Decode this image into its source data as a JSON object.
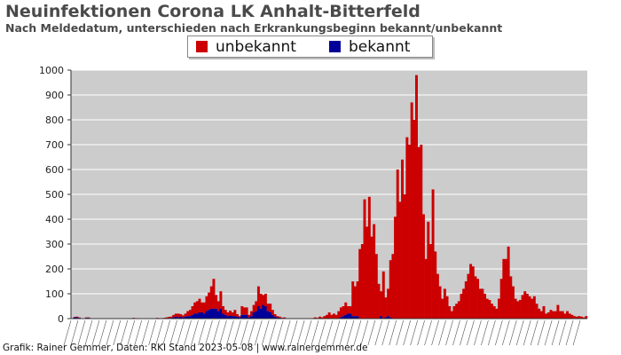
{
  "title": "Neuinfektionen Corona LK Anhalt-Bitterfeld",
  "subtitle": "Nach Meldedatum, unterschieden nach Erkrankungsbeginn bekannt/unbekannt",
  "legend": {
    "placement": "top-center",
    "items": [
      {
        "label": "unbekannt",
        "color": "#cc0000"
      },
      {
        "label": "bekannt",
        "color": "#000099"
      }
    ]
  },
  "footer": "Grafik: Rainer Gemmer, Daten: RKI Stand 2023-05-08 | www.rainergemmer.de",
  "colors": {
    "plot_bg": "#cccccc",
    "grid": "#ffffff",
    "unbekannt": "#cc0000",
    "bekannt": "#000099"
  },
  "chart_data": {
    "type": "bar",
    "stacked": true,
    "ylim": [
      0,
      1000
    ],
    "yticks": [
      0,
      100,
      200,
      300,
      400,
      500,
      600,
      700,
      800,
      900,
      1000
    ],
    "grid": true,
    "xaxis_note": "one bar per reporting week; x tick labels are dense overlapping date labels and not legible",
    "series": [
      {
        "name": "unbekannt",
        "values": [
          0,
          2,
          3,
          2,
          0,
          0,
          2,
          2,
          0,
          0,
          0,
          0,
          0,
          0,
          0,
          0,
          0,
          0,
          0,
          0,
          0,
          0,
          0,
          0,
          0,
          0,
          3,
          2,
          0,
          0,
          0,
          0,
          0,
          0,
          0,
          0,
          3,
          2,
          2,
          3,
          3,
          5,
          5,
          10,
          12,
          15,
          10,
          8,
          12,
          20,
          25,
          35,
          45,
          50,
          55,
          40,
          45,
          60,
          70,
          90,
          120,
          55,
          40,
          70,
          30,
          20,
          15,
          20,
          15,
          25,
          10,
          5,
          35,
          30,
          30,
          10,
          20,
          30,
          40,
          80,
          60,
          40,
          50,
          30,
          35,
          20,
          10,
          5,
          5,
          2,
          3,
          0,
          0,
          0,
          0,
          0,
          0,
          0,
          0,
          0,
          0,
          0,
          2,
          5,
          3,
          8,
          5,
          10,
          15,
          25,
          15,
          20,
          15,
          30,
          40,
          40,
          50,
          30,
          30,
          140,
          120,
          140,
          280,
          300,
          480,
          370,
          490,
          330,
          380,
          260,
          140,
          100,
          190,
          80,
          110,
          230,
          260,
          410,
          600,
          470,
          640,
          500,
          730,
          700,
          870,
          800,
          980,
          690,
          700,
          420,
          240,
          390,
          300,
          520,
          270,
          180,
          130,
          80,
          120,
          90,
          50,
          30,
          50,
          60,
          70,
          100,
          120,
          150,
          180,
          220,
          210,
          170,
          160,
          120,
          120,
          100,
          80,
          75,
          60,
          50,
          40,
          80,
          160,
          240,
          240,
          290,
          170,
          130,
          80,
          70,
          75,
          95,
          110,
          100,
          90,
          80,
          90,
          60,
          40,
          30,
          50,
          20,
          25,
          35,
          30,
          30,
          55,
          30,
          30,
          20,
          30,
          20,
          15,
          10,
          8,
          10,
          8,
          5,
          10
        ],
        "values_note": "approximate, read from bar heights"
      },
      {
        "name": "bekannt",
        "values": [
          0,
          5,
          5,
          3,
          0,
          0,
          3,
          3,
          0,
          0,
          0,
          0,
          0,
          0,
          0,
          0,
          0,
          0,
          0,
          0,
          0,
          0,
          0,
          0,
          0,
          0,
          0,
          0,
          0,
          0,
          0,
          0,
          0,
          0,
          0,
          0,
          0,
          0,
          0,
          0,
          2,
          2,
          3,
          5,
          8,
          5,
          8,
          5,
          8,
          10,
          10,
          15,
          20,
          20,
          25,
          25,
          20,
          30,
          35,
          40,
          40,
          40,
          30,
          40,
          20,
          15,
          10,
          12,
          10,
          10,
          8,
          5,
          15,
          15,
          15,
          5,
          10,
          25,
          30,
          50,
          40,
          55,
          50,
          30,
          25,
          15,
          8,
          5,
          3,
          2,
          2,
          0,
          0,
          0,
          0,
          0,
          0,
          0,
          0,
          0,
          0,
          0,
          0,
          0,
          0,
          0,
          0,
          0,
          0,
          0,
          0,
          0,
          0,
          0,
          5,
          10,
          15,
          20,
          20,
          10,
          10,
          10,
          0,
          0,
          0,
          0,
          0,
          0,
          0,
          0,
          0,
          10,
          0,
          5,
          10,
          5,
          0,
          0,
          0,
          0,
          0,
          0,
          0,
          0,
          0,
          0,
          0,
          0,
          0,
          0,
          0,
          0,
          0,
          0,
          0,
          0,
          0,
          0,
          0,
          0,
          0,
          0,
          0,
          0,
          0,
          0,
          0,
          0,
          0,
          0,
          0,
          0,
          0,
          0,
          0,
          0,
          0,
          0,
          0,
          0,
          0,
          0,
          0,
          0,
          0,
          0,
          0,
          0,
          0,
          0,
          0,
          0,
          0,
          0,
          0,
          0,
          0,
          0,
          0,
          0,
          0,
          0,
          0,
          0,
          0,
          0,
          0,
          0,
          0,
          0,
          0,
          0,
          0,
          0,
          0,
          0,
          0,
          0,
          0,
          0,
          0,
          0,
          0,
          0,
          0,
          0,
          0,
          0,
          0,
          0,
          0
        ]
      }
    ]
  }
}
